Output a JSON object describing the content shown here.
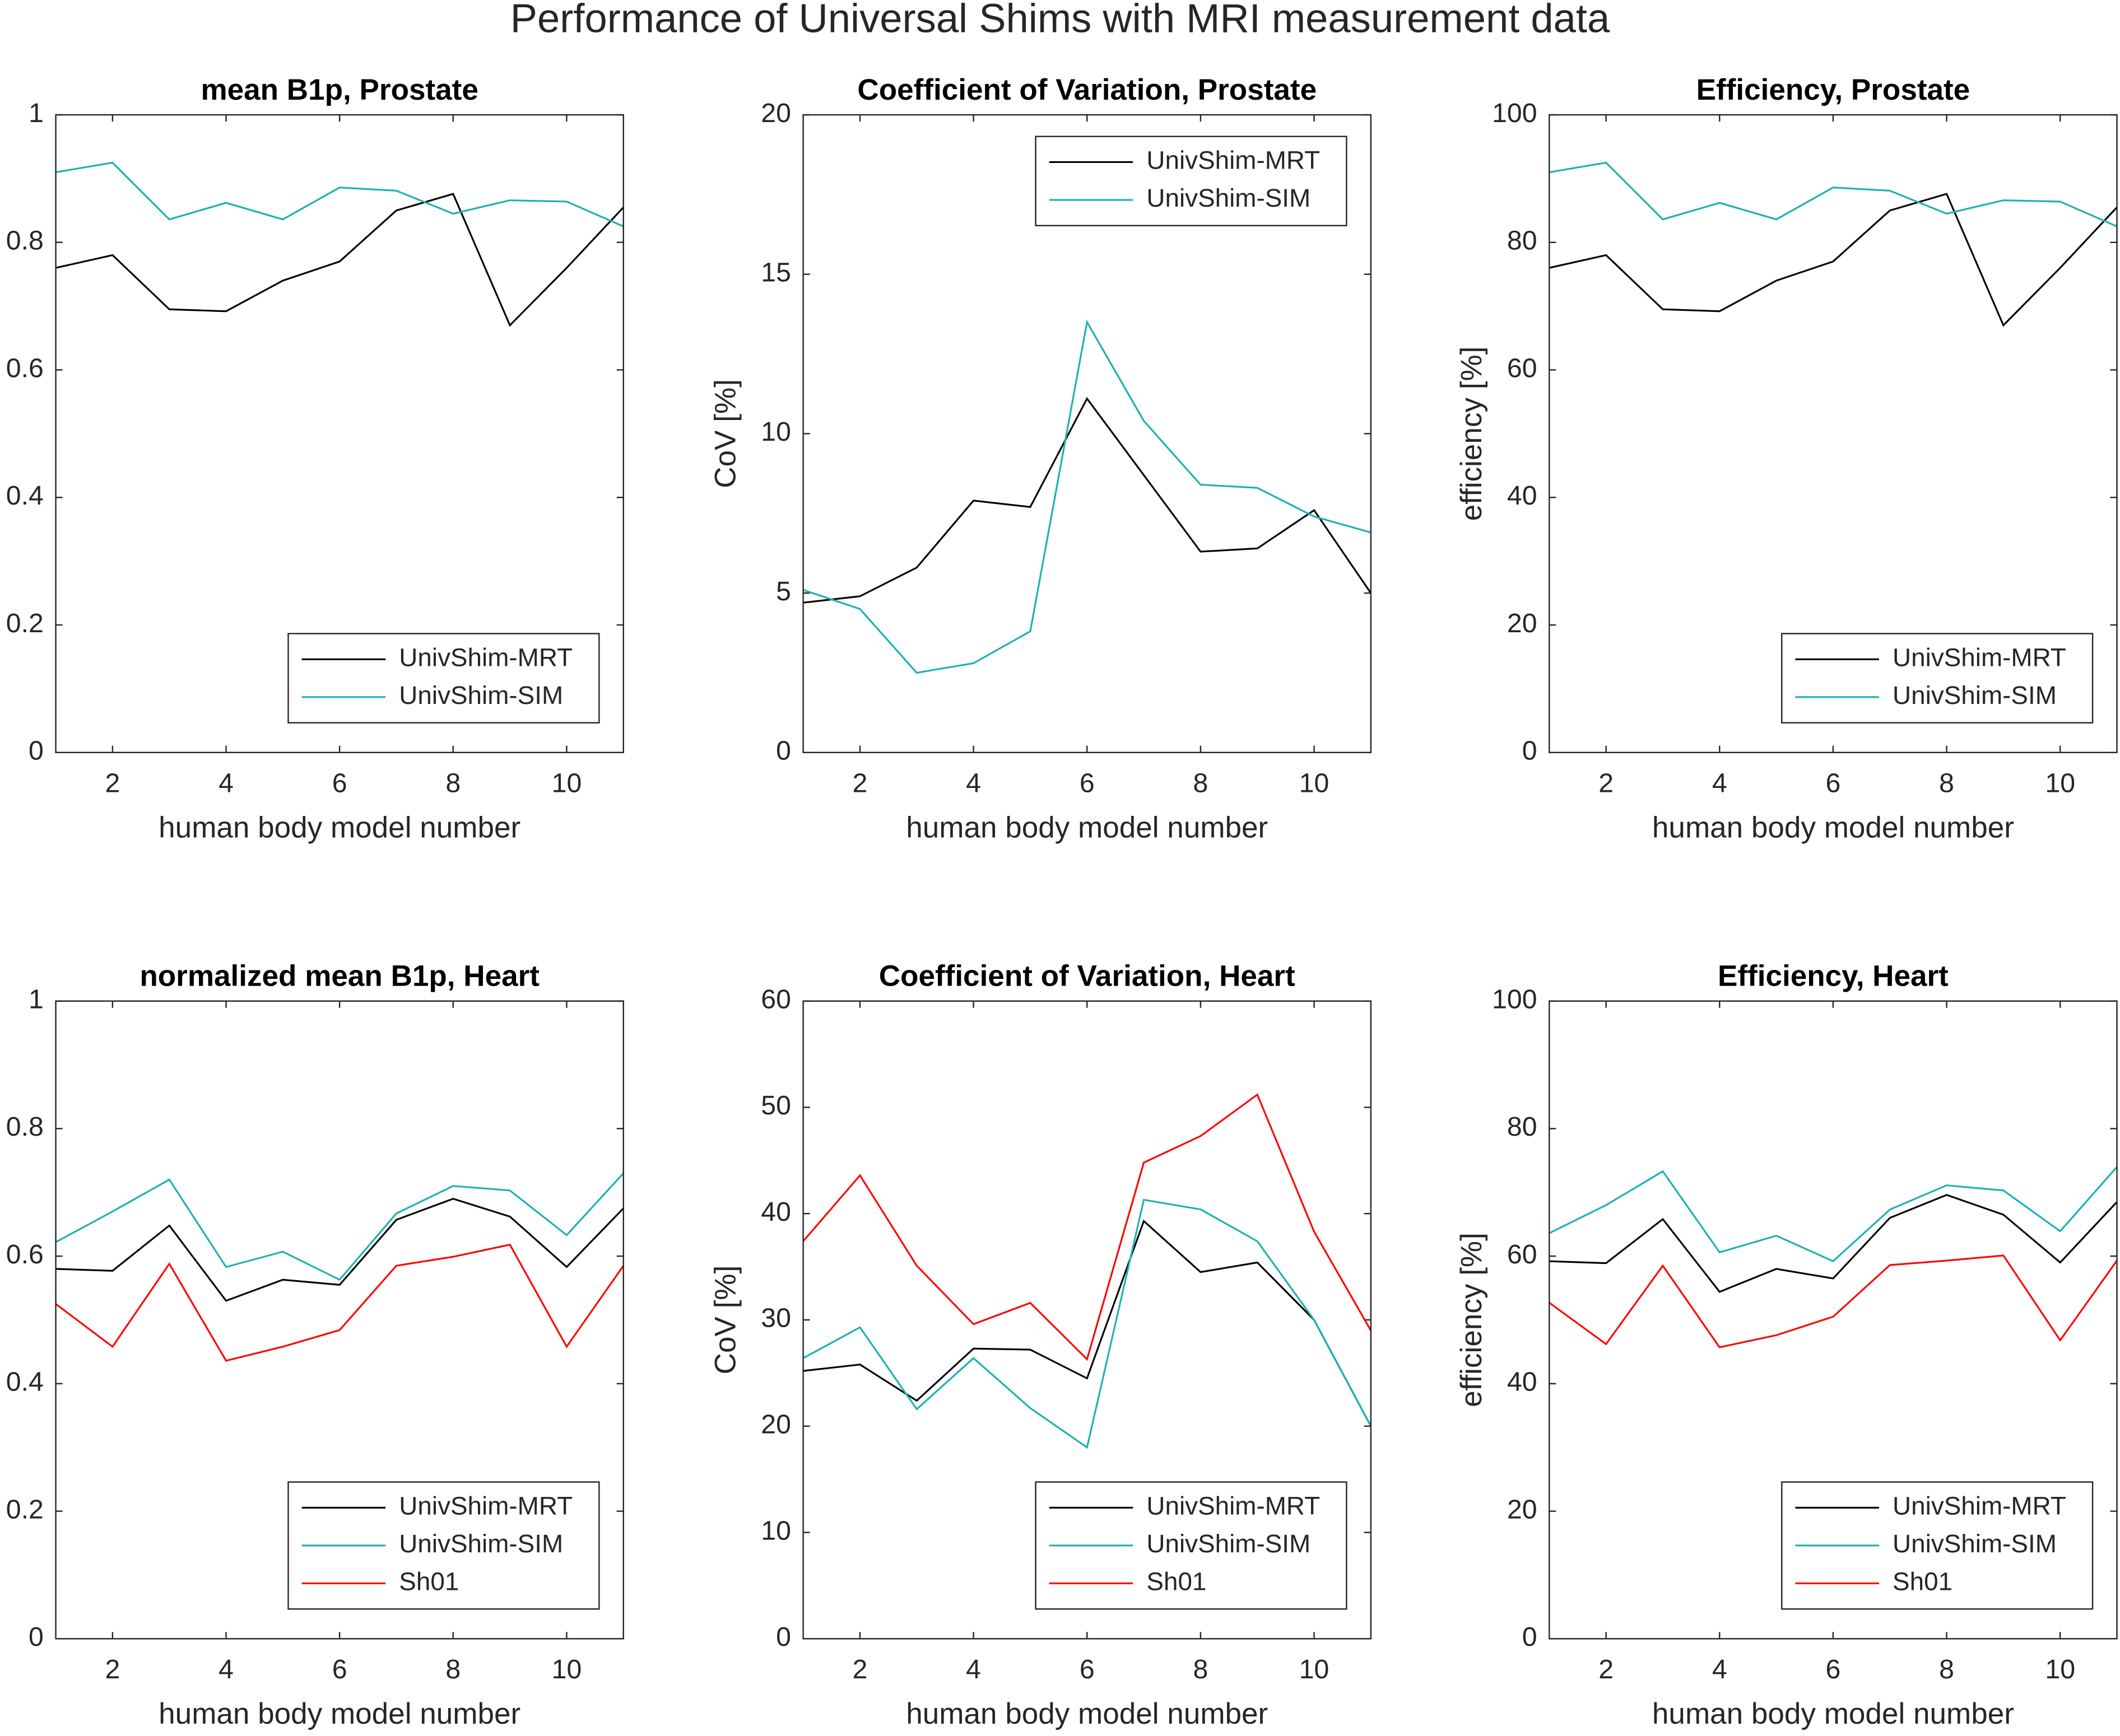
{
  "title": "Performance of Universal Shims with MRI measurement data",
  "chart_data": [
    {
      "type": "line",
      "title": "mean B1p, Prostate",
      "xlabel": "human body model number",
      "x": [
        1,
        2,
        3,
        4,
        5,
        6,
        7,
        8,
        9,
        10,
        11
      ],
      "xlim": [
        1,
        11
      ],
      "xticks": [
        2,
        4,
        6,
        8,
        10
      ],
      "ylim": [
        0,
        1
      ],
      "yticks": [
        0,
        0.2,
        0.4,
        0.6,
        0.8,
        1
      ],
      "legend": "lower right",
      "series": [
        {
          "name": "UnivShim-MRT",
          "color": "#000000",
          "values": [
            0.76,
            0.78,
            0.695,
            0.692,
            0.74,
            0.77,
            0.85,
            0.876,
            0.67,
            0.76,
            0.855
          ]
        },
        {
          "name": "UnivShim-SIM",
          "color": "#1ab2b2",
          "values": [
            0.91,
            0.925,
            0.836,
            0.862,
            0.836,
            0.886,
            0.881,
            0.845,
            0.866,
            0.864,
            0.825
          ]
        }
      ]
    },
    {
      "type": "line",
      "title": "Coefficient of Variation, Prostate",
      "xlabel": "human body model number",
      "ylabel": "CoV [%]",
      "x": [
        1,
        2,
        3,
        4,
        5,
        6,
        7,
        8,
        9,
        10,
        11
      ],
      "xlim": [
        1,
        11
      ],
      "xticks": [
        2,
        4,
        6,
        8,
        10
      ],
      "ylim": [
        0,
        20
      ],
      "yticks": [
        0,
        5,
        10,
        15,
        20
      ],
      "legend": "upper right",
      "series": [
        {
          "name": "UnivShim-MRT",
          "color": "#000000",
          "values": [
            4.7,
            4.9,
            5.8,
            7.9,
            7.7,
            11.1,
            8.7,
            6.3,
            6.4,
            7.6,
            5.0
          ]
        },
        {
          "name": "UnivShim-SIM",
          "color": "#1ab2b2",
          "values": [
            5.1,
            4.5,
            2.5,
            2.8,
            3.8,
            13.5,
            10.4,
            8.4,
            8.3,
            7.4,
            6.9
          ]
        }
      ]
    },
    {
      "type": "line",
      "title": "Efficiency, Prostate",
      "xlabel": "human body model number",
      "ylabel": "efficiency [%]",
      "x": [
        1,
        2,
        3,
        4,
        5,
        6,
        7,
        8,
        9,
        10,
        11
      ],
      "xlim": [
        1,
        11
      ],
      "xticks": [
        2,
        4,
        6,
        8,
        10
      ],
      "ylim": [
        0,
        100
      ],
      "yticks": [
        0,
        20,
        40,
        60,
        80,
        100
      ],
      "legend": "lower right",
      "series": [
        {
          "name": "UnivShim-MRT",
          "color": "#000000",
          "values": [
            76,
            78,
            69.5,
            69.2,
            74,
            77,
            85,
            87.6,
            67,
            76,
            85.5
          ]
        },
        {
          "name": "UnivShim-SIM",
          "color": "#1ab2b2",
          "values": [
            91,
            92.5,
            83.6,
            86.2,
            83.6,
            88.6,
            88.1,
            84.5,
            86.6,
            86.4,
            82.5
          ]
        }
      ]
    },
    {
      "type": "line",
      "title": "normalized mean B1p, Heart",
      "xlabel": "human body model number",
      "x": [
        1,
        2,
        3,
        4,
        5,
        6,
        7,
        8,
        9,
        10,
        11
      ],
      "xlim": [
        1,
        11
      ],
      "xticks": [
        2,
        4,
        6,
        8,
        10
      ],
      "ylim": [
        0,
        1
      ],
      "yticks": [
        0,
        0.2,
        0.4,
        0.6,
        0.8,
        1
      ],
      "legend": "lower right",
      "series": [
        {
          "name": "UnivShim-MRT",
          "color": "#000000",
          "values": [
            0.58,
            0.577,
            0.648,
            0.53,
            0.563,
            0.555,
            0.657,
            0.69,
            0.662,
            0.583,
            0.675
          ]
        },
        {
          "name": "UnivShim-SIM",
          "color": "#1ab2b2",
          "values": [
            0.622,
            0.67,
            0.72,
            0.583,
            0.607,
            0.563,
            0.667,
            0.71,
            0.703,
            0.633,
            0.73
          ]
        },
        {
          "name": "Sh01",
          "color": "#ff0000",
          "values": [
            0.525,
            0.458,
            0.588,
            0.436,
            0.458,
            0.484,
            0.585,
            0.599,
            0.618,
            0.458,
            0.585
          ]
        }
      ]
    },
    {
      "type": "line",
      "title": "Coefficient of Variation, Heart",
      "xlabel": "human body model number",
      "ylabel": "CoV [%]",
      "x": [
        1,
        2,
        3,
        4,
        5,
        6,
        7,
        8,
        9,
        10,
        11
      ],
      "xlim": [
        1,
        11
      ],
      "xticks": [
        2,
        4,
        6,
        8,
        10
      ],
      "ylim": [
        0,
        60
      ],
      "yticks": [
        0,
        10,
        20,
        30,
        40,
        50,
        60
      ],
      "legend": "lower right",
      "series": [
        {
          "name": "UnivShim-MRT",
          "color": "#000000",
          "values": [
            25.2,
            25.8,
            22.4,
            27.3,
            27.2,
            24.5,
            39.3,
            34.5,
            35.4,
            30.0,
            20.0
          ]
        },
        {
          "name": "UnivShim-SIM",
          "color": "#1ab2b2",
          "values": [
            26.4,
            29.3,
            21.6,
            26.4,
            21.7,
            18.0,
            41.3,
            40.4,
            37.4,
            30.0,
            20.0
          ]
        },
        {
          "name": "Sh01",
          "color": "#ff0000",
          "values": [
            37.4,
            43.6,
            35.1,
            29.6,
            31.6,
            26.3,
            44.8,
            47.3,
            51.2,
            38.3,
            29.0
          ]
        }
      ]
    },
    {
      "type": "line",
      "title": "Efficiency, Heart",
      "xlabel": "human body model number",
      "ylabel": "efficiency [%]",
      "x": [
        1,
        2,
        3,
        4,
        5,
        6,
        7,
        8,
        9,
        10,
        11
      ],
      "xlim": [
        1,
        11
      ],
      "xticks": [
        2,
        4,
        6,
        8,
        10
      ],
      "ylim": [
        0,
        100
      ],
      "yticks": [
        0,
        20,
        40,
        60,
        80,
        100
      ],
      "legend": "lower right",
      "series": [
        {
          "name": "UnivShim-MRT",
          "color": "#000000",
          "values": [
            59.2,
            58.9,
            65.8,
            54.4,
            58.0,
            56.5,
            66.0,
            69.6,
            66.5,
            59.0,
            68.5
          ]
        },
        {
          "name": "UnivShim-SIM",
          "color": "#1ab2b2",
          "values": [
            63.6,
            68.0,
            73.3,
            60.6,
            63.2,
            59.2,
            67.3,
            71.1,
            70.3,
            63.9,
            74.0
          ]
        },
        {
          "name": "Sh01",
          "color": "#ff0000",
          "values": [
            52.7,
            46.2,
            58.5,
            45.7,
            47.6,
            50.5,
            58.6,
            59.3,
            60.1,
            46.8,
            59.3
          ]
        }
      ]
    }
  ]
}
